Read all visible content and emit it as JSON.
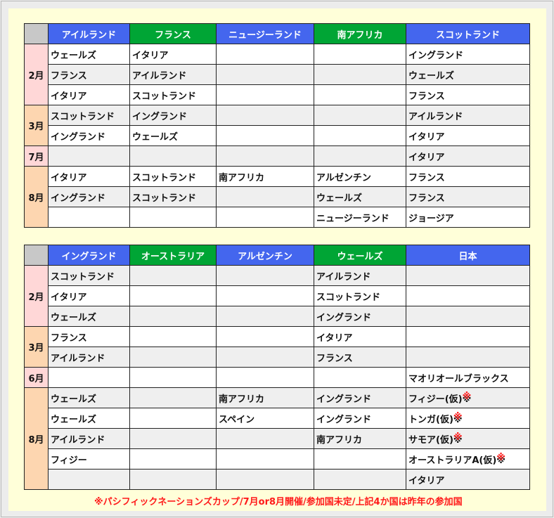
{
  "colors": {
    "blue": "#4466ee",
    "green": "#00a535",
    "pink": "#ffd7d7",
    "peach": "#fdd6b0"
  },
  "tables": [
    {
      "headers": [
        {
          "label": "アイルランド",
          "color": "blue"
        },
        {
          "label": "フランス",
          "color": "green"
        },
        {
          "label": "ニュージーランド",
          "color": "blue"
        },
        {
          "label": "南アフリカ",
          "color": "green"
        },
        {
          "label": "スコットランド",
          "color": "blue"
        }
      ],
      "groups": [
        {
          "month": "2月",
          "color": "pink",
          "rows": [
            [
              "ウェールズ",
              "イタリア",
              "",
              "",
              "イングランド"
            ],
            [
              "フランス",
              "アイルランド",
              "",
              "",
              "ウェールズ"
            ],
            [
              "イタリア",
              "スコットランド",
              "",
              "",
              "フランス"
            ]
          ]
        },
        {
          "month": "3月",
          "color": "peach",
          "rows": [
            [
              "スコットランド",
              "イングランド",
              "",
              "",
              "アイルランド"
            ],
            [
              "イングランド",
              "ウェールズ",
              "",
              "",
              "イタリア"
            ]
          ]
        },
        {
          "month": "7月",
          "color": "pink",
          "rows": [
            [
              "",
              "",
              "",
              "",
              "イタリア"
            ]
          ]
        },
        {
          "month": "8月",
          "color": "peach",
          "rows": [
            [
              "イタリア",
              "スコットランド",
              "南アフリカ",
              "アルゼンチン",
              "フランス"
            ],
            [
              "イングランド",
              "スコットランド",
              "",
              "ウェールズ",
              "フランス"
            ],
            [
              "",
              "",
              "",
              "ニュージーランド",
              "ジョージア"
            ]
          ]
        }
      ]
    },
    {
      "headers": [
        {
          "label": "イングランド",
          "color": "blue"
        },
        {
          "label": "オーストラリア",
          "color": "green"
        },
        {
          "label": "アルゼンチン",
          "color": "blue"
        },
        {
          "label": "ウェールズ",
          "color": "green"
        },
        {
          "label": "日本",
          "color": "blue"
        }
      ],
      "groups": [
        {
          "month": "2月",
          "color": "pink",
          "rows": [
            [
              "スコットランド",
              "",
              "",
              "アイルランド",
              ""
            ],
            [
              "イタリア",
              "",
              "",
              "スコットランド",
              ""
            ],
            [
              "ウェールズ",
              "",
              "",
              "イングランド",
              ""
            ]
          ]
        },
        {
          "month": "3月",
          "color": "peach",
          "rows": [
            [
              "フランス",
              "",
              "",
              "イタリア",
              ""
            ],
            [
              "アイルランド",
              "",
              "",
              "フランス",
              ""
            ]
          ]
        },
        {
          "month": "6月",
          "color": "pink",
          "rows": [
            [
              "",
              "",
              "",
              "",
              "マオリオールブラックス"
            ]
          ]
        },
        {
          "month": "8月",
          "color": "peach",
          "rows": [
            [
              "ウェールズ",
              "",
              "南アフリカ",
              "イングランド",
              "フィジー(仮)※"
            ],
            [
              "ウェールズ",
              "",
              "スペイン",
              "イングランド",
              "トンガ(仮)※"
            ],
            [
              "アイルランド",
              "",
              "",
              "南アフリカ",
              "サモア(仮)※"
            ],
            [
              "フィジー",
              "",
              "",
              "",
              "オーストラリアA(仮)※"
            ],
            [
              "",
              "",
              "",
              "",
              "イタリア"
            ]
          ]
        }
      ]
    }
  ],
  "note": "※パシフィックネーションズカップ/7月or8月開催/参加国未定/上記4か国は昨年の参加国"
}
